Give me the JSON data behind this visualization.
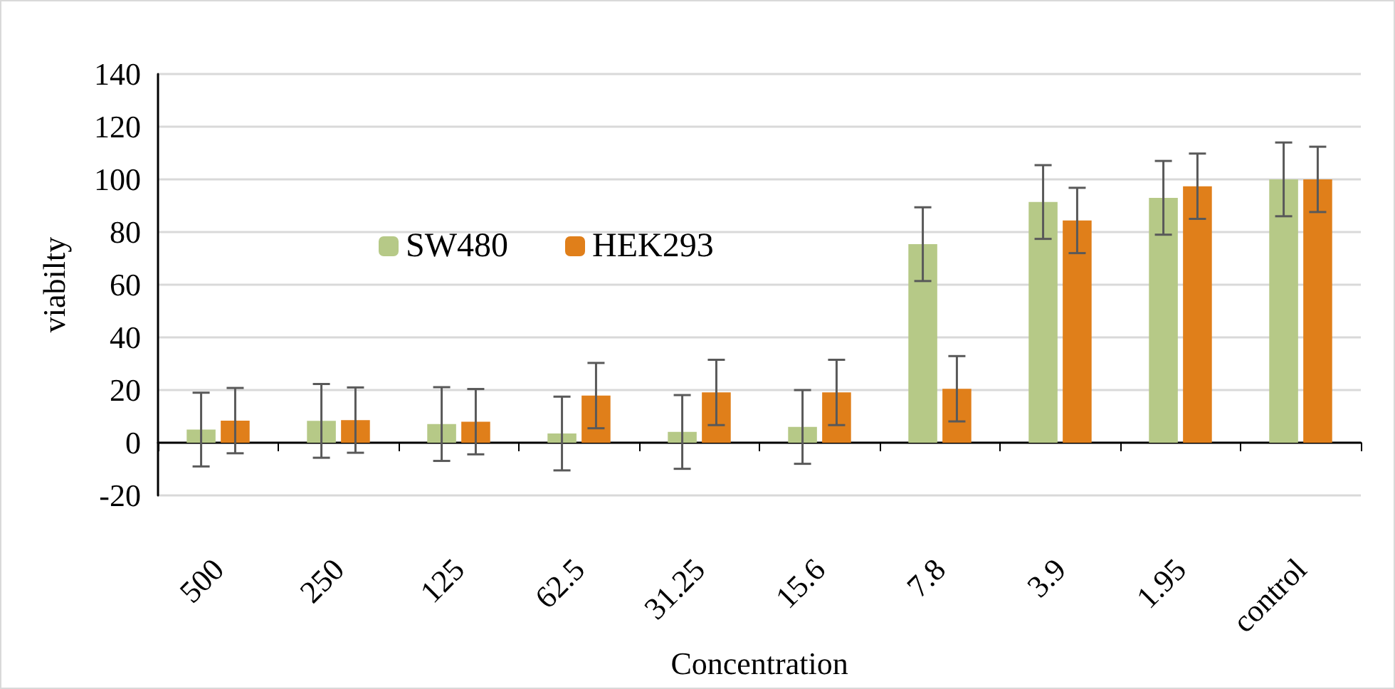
{
  "chart_data": {
    "type": "bar",
    "xlabel": "Concentration",
    "ylabel": "viabilty",
    "categories": [
      "500",
      "250",
      "125",
      "62.5",
      "31.25",
      "15.6",
      "7.8",
      "3.9",
      "1.95",
      "control"
    ],
    "series": [
      {
        "name": "SW480",
        "color": "#b6c987",
        "values": [
          5,
          8.3,
          7.1,
          3.5,
          4.1,
          6,
          75.4,
          91.4,
          93,
          100
        ],
        "errors": [
          14,
          14,
          14,
          14,
          14,
          14,
          14,
          14,
          14,
          14
        ]
      },
      {
        "name": "HEK293",
        "color": "#e07f1a",
        "values": [
          8.4,
          8.6,
          8,
          17.9,
          19.1,
          19.1,
          20.5,
          84.4,
          97.4,
          100
        ],
        "errors": [
          12.4,
          12.4,
          12.4,
          12.4,
          12.4,
          12.4,
          12.4,
          12.4,
          12.4,
          12.4
        ]
      }
    ],
    "ylim": [
      -20,
      140
    ],
    "yticks": [
      -20,
      0,
      20,
      40,
      60,
      80,
      100,
      120,
      140
    ],
    "grid": "y",
    "legend": "top left"
  }
}
